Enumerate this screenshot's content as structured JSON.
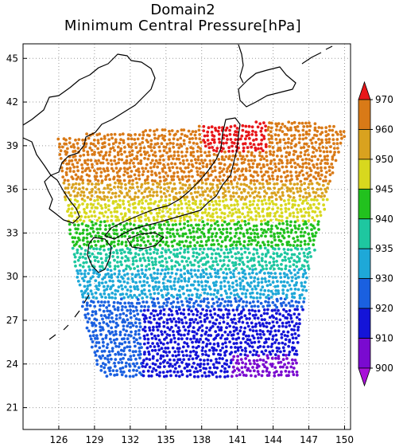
{
  "title": {
    "line1": "Domain2",
    "line2": "Minimum Central Pressure[hPa]"
  },
  "map": {
    "lon_range": [
      123,
      150.5
    ],
    "lat_range": [
      19.5,
      46
    ],
    "x_ticks": [
      126,
      129,
      132,
      135,
      138,
      141,
      144,
      147,
      150
    ],
    "y_ticks": [
      21,
      24,
      27,
      30,
      33,
      36,
      39,
      42,
      45
    ],
    "grid": "dotted",
    "coastline_color": "#000000"
  },
  "chart_data": {
    "type": "scatter",
    "description_units": "longitude (E), latitude (N), minimum central pressure (hPa)",
    "x_range": [
      123,
      150.5
    ],
    "y_range": [
      19.5,
      46
    ],
    "colorbar": {
      "labels": [
        "970",
        "960",
        "950",
        "945",
        "940",
        "935",
        "930",
        "920",
        "910",
        "900"
      ],
      "colors": [
        "#e8171a",
        "#d97a17",
        "#d9a21f",
        "#d8d81e",
        "#22c11e",
        "#1ec7a0",
        "#1ea8d8",
        "#1a60e0",
        "#1414d8",
        "#7a0ad0",
        "#a810d8"
      ]
    },
    "region": {
      "south_lat": 23.2,
      "north_lat_west": 39.6,
      "north_lat_east": 41.0,
      "west_lon_south": 130.0,
      "west_lon_north": 126.0,
      "east_lon_south": 146.0,
      "east_lon_north": 150.0
    },
    "pressure_bands": [
      {
        "lat_max": 24.6,
        "lon_min": 140.5,
        "hpa": 900
      },
      {
        "lat_max": 27.8,
        "lon_min": 133.0,
        "hpa": 910
      },
      {
        "lat_max": 28.5,
        "hpa": 920
      },
      {
        "lat_max": 30.5,
        "hpa": 930
      },
      {
        "lat_max": 32.0,
        "hpa": 935
      },
      {
        "lat_max": 33.8,
        "hpa": 940
      },
      {
        "lat_max": 35.3,
        "hpa": 945
      },
      {
        "lat_max": 36.5,
        "hpa": 950
      },
      {
        "lat_max": 38.6,
        "hpa": 960
      },
      {
        "lat_max": 41.5,
        "hpa": 970
      }
    ]
  }
}
